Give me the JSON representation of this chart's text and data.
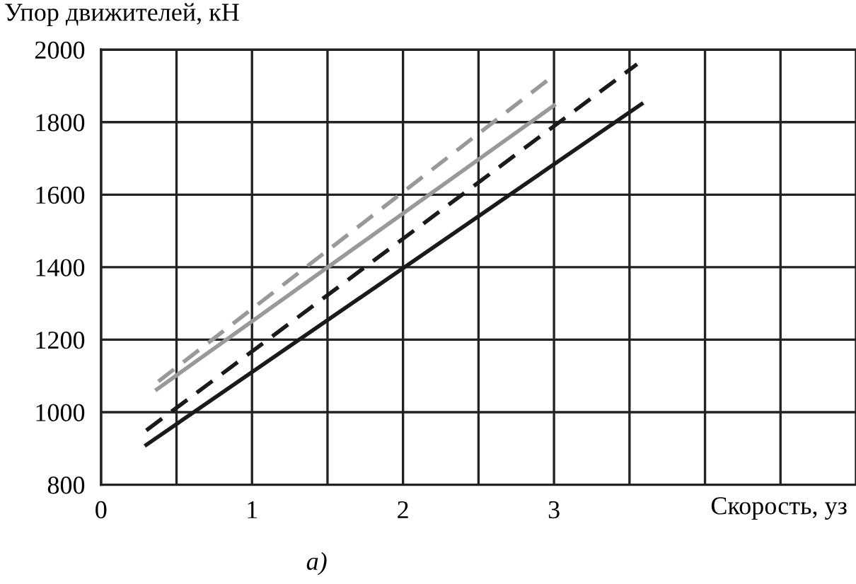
{
  "chart_data": {
    "type": "line",
    "ylabel": "Упор движителей, кН",
    "xlabel": "Скорость, уз",
    "annotations": [
      "а)"
    ],
    "xlim": [
      0,
      5
    ],
    "ylim": [
      800,
      2000
    ],
    "xticks": [
      0,
      {
        "value": 0.5,
        "label": null
      },
      1,
      {
        "value": 1.5,
        "label": null
      },
      2,
      {
        "value": 2.5,
        "label": null
      },
      3,
      {
        "value": 3.5,
        "label": null
      },
      {
        "value": 4,
        "label": null
      },
      {
        "value": 4.5,
        "label": null
      },
      {
        "value": 5,
        "label": null
      }
    ],
    "yticks": [
      800,
      1000,
      1200,
      1400,
      1600,
      1800,
      2000
    ],
    "grid": true,
    "legend": false,
    "series": [
      {
        "color": "#1a1a1a",
        "line_style": "solid",
        "x": [
          0.3,
          3.58
        ],
        "values": [
          910,
          1850
        ]
      },
      {
        "color": "#1a1a1a",
        "line_style": "dashed",
        "x": [
          0.3,
          3.55
        ],
        "values": [
          950,
          1960
        ]
      },
      {
        "color": "#999999",
        "line_style": "solid",
        "x": [
          0.37,
          3.0
        ],
        "values": [
          1063,
          1846
        ]
      },
      {
        "color": "#999999",
        "line_style": "dashed",
        "x": [
          0.38,
          2.98
        ],
        "values": [
          1085,
          1923
        ]
      }
    ]
  }
}
